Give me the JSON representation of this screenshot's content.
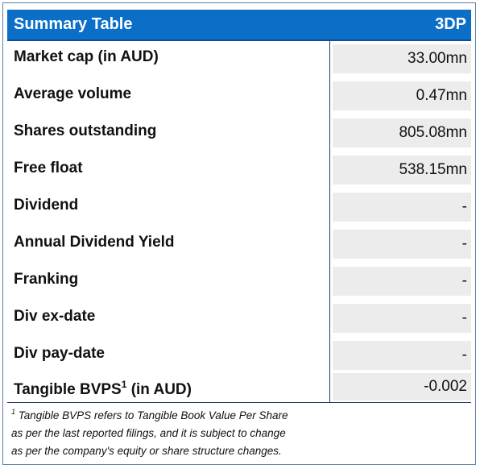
{
  "header": {
    "title": "Summary Table",
    "ticker": "3DP"
  },
  "rows": [
    {
      "label": "Market cap (in AUD)",
      "value": "33.00mn"
    },
    {
      "label": "Average volume",
      "value": "0.47mn"
    },
    {
      "label": "Shares outstanding",
      "value": "805.08mn"
    },
    {
      "label": "Free float",
      "value": "538.15mn"
    },
    {
      "label": "Dividend",
      "value": "-"
    },
    {
      "label": "Annual Dividend Yield",
      "value": "-"
    },
    {
      "label": "Franking",
      "value": "-"
    },
    {
      "label": "Div ex-date",
      "value": "-"
    },
    {
      "label": "Div pay-date",
      "value": "-"
    },
    {
      "label": "Tangible BVPS",
      "sup": "1",
      "label_suffix": " (in AUD)",
      "value": "-0.002"
    }
  ],
  "footnote": {
    "marker": "1",
    "lines": [
      "Tangible BVPS refers to Tangible Book Value Per Share",
      "as per the last reported filings, and it is subject to change",
      "as per the company's equity or share structure changes."
    ]
  },
  "colors": {
    "header_bg": "#0b6fc8",
    "value_bg": "#ececec",
    "border": "#5b7fa6"
  }
}
